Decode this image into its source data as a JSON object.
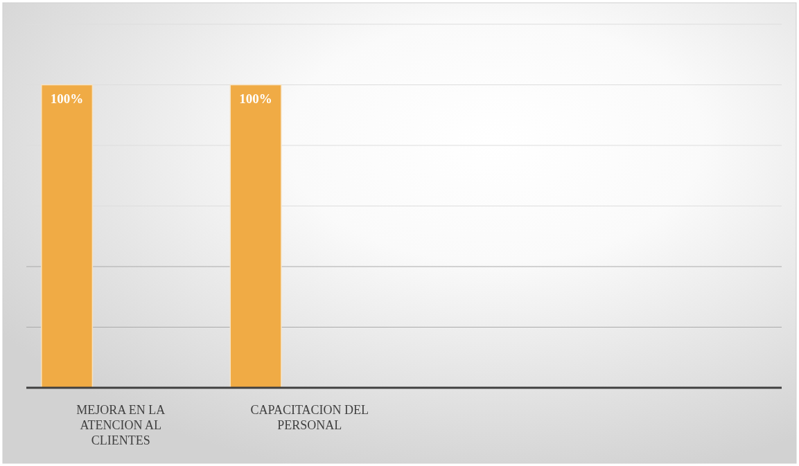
{
  "chart_data": {
    "type": "bar",
    "categories": [
      "MEJORA EN LA ATENCION AL CLIENTES",
      "CAPACITACION DEL PERSONAL",
      null,
      null
    ],
    "values": [
      100,
      100,
      null,
      null
    ],
    "color": "#f0ab45",
    "value_labels": [
      "100%",
      "100%",
      null,
      null
    ],
    "ylim": [
      0,
      120
    ],
    "yticks": [
      {
        "value": 0,
        "label": null
      },
      {
        "value": 20,
        "label": null
      },
      {
        "value": 40,
        "label": null
      },
      {
        "value": 60,
        "label": null
      },
      {
        "value": 80,
        "label": null
      },
      {
        "value": 100,
        "label": null
      },
      {
        "value": 120,
        "label": null
      }
    ],
    "grid": true,
    "tick_labels": "x"
  }
}
